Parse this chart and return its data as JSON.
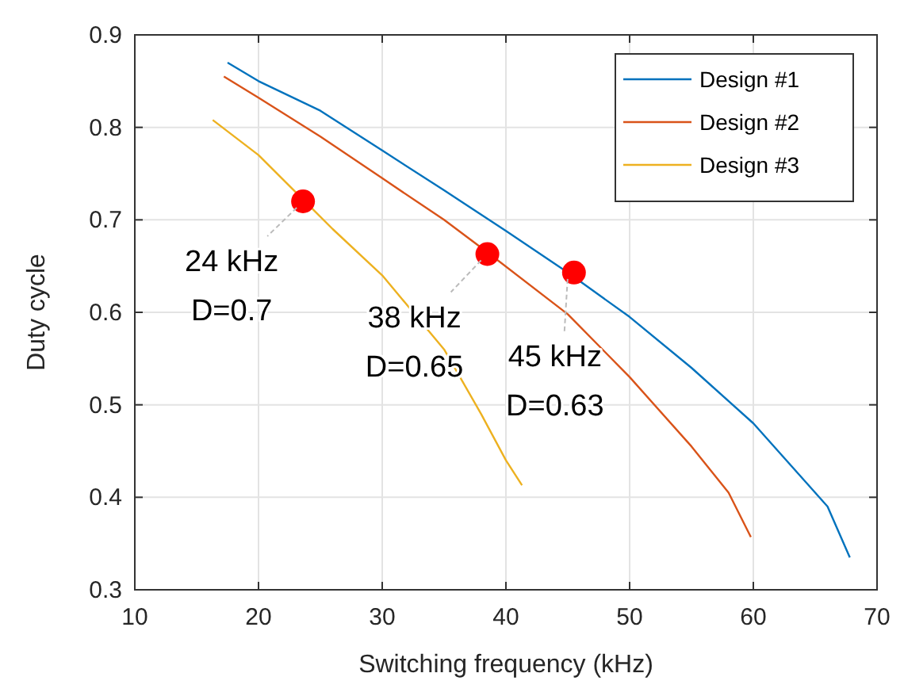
{
  "chart_data": {
    "type": "line",
    "xlabel": "Switching frequency (kHz)",
    "ylabel": "Duty cycle",
    "xlim": [
      10,
      70
    ],
    "xticks": [
      10,
      20,
      30,
      40,
      50,
      60,
      70
    ],
    "ylim": [
      0.3,
      0.9
    ],
    "yticks": [
      0.3,
      0.4,
      0.5,
      0.6,
      0.7,
      0.8,
      0.9
    ],
    "grid": true,
    "legend": "top right",
    "marker": "none",
    "line_style": "solid",
    "series": [
      {
        "name": "Design #1",
        "color": "#0072bd",
        "x": [
          17.5,
          20,
          25,
          30,
          35,
          40,
          45,
          50,
          55,
          60,
          63,
          66,
          67.8
        ],
        "values": [
          0.87,
          0.85,
          0.818,
          0.775,
          0.732,
          0.688,
          0.643,
          0.595,
          0.54,
          0.48,
          0.435,
          0.39,
          0.335
        ]
      },
      {
        "name": "Design #2",
        "color": "#d95319",
        "x": [
          17.2,
          20,
          25,
          30,
          35,
          38.5,
          45,
          50,
          55,
          58,
          59.8
        ],
        "values": [
          0.855,
          0.832,
          0.79,
          0.745,
          0.7,
          0.665,
          0.598,
          0.53,
          0.455,
          0.405,
          0.357
        ]
      },
      {
        "name": "Design #3",
        "color": "#edb120",
        "x": [
          16.3,
          20,
          26,
          30,
          35,
          38,
          40,
          41.3
        ],
        "values": [
          0.808,
          0.77,
          0.69,
          0.64,
          0.56,
          0.49,
          0.44,
          0.413
        ]
      },
      {
        "type": "scatter",
        "color": "#ff0000",
        "marker": "circle",
        "x": [
          23.6,
          38.5,
          45.5
        ],
        "values": [
          0.72,
          0.663,
          0.643
        ]
      }
    ],
    "annotations": [
      {
        "text": "24 kHz\nD=0.7",
        "x": 23.6,
        "y": 0.72
      },
      {
        "text": "38 kHz\nD=0.65",
        "x": 38.5,
        "y": 0.663
      },
      {
        "text": "45 kHz\nD=0.63",
        "x": 45.5,
        "y": 0.643
      }
    ]
  }
}
